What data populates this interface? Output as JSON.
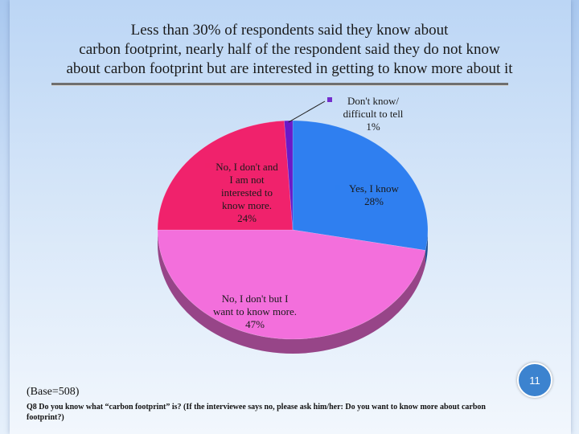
{
  "slide": {
    "title_lines": [
      "Less than 30% of respondents said they know about",
      "carbon footprint, nearly half of the respondent said they do not know",
      "about carbon footprint but are interested in getting to know more about it"
    ],
    "base_note": "(Base=508)",
    "question_note": "Q8 Do you know what “carbon footprint” is? (If the interviewee says no, please ask him/her: Do you want to know more about carbon footprint?)",
    "page_number": "11"
  },
  "chart_data": {
    "type": "pie",
    "title": "",
    "slices": [
      {
        "label_lines": [
          "Yes, I know"
        ],
        "percent_text": "28%",
        "value": 28,
        "color": "#2f7ff0"
      },
      {
        "label_lines": [
          "No, I don't but I",
          "want to know more."
        ],
        "percent_text": "47%",
        "value": 47,
        "color": "#f36fdc"
      },
      {
        "label_lines": [
          "No, I don't and",
          "I am not",
          "interested to",
          "know more."
        ],
        "percent_text": "24%",
        "value": 24,
        "color": "#f0226c"
      },
      {
        "label_lines": [
          "Don't know/",
          "difficult to tell"
        ],
        "percent_text": "1%",
        "value": 1,
        "color": "#6a19c8"
      }
    ],
    "legend": "none"
  }
}
